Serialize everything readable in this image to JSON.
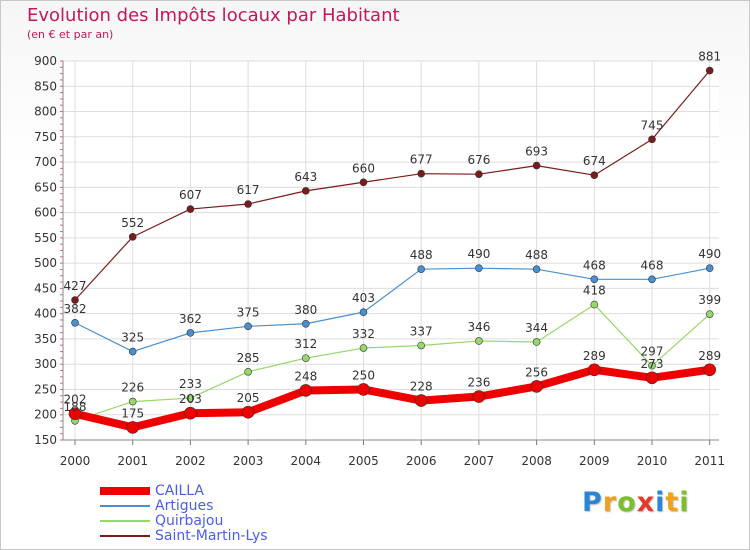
{
  "title": "Evolution des Impôts locaux par Habitant",
  "subtitle": "(en € et par an)",
  "logo_letters": [
    {
      "ch": "P",
      "color": "#2a86d4"
    },
    {
      "ch": "r",
      "color": "#f0a21a"
    },
    {
      "ch": "o",
      "color": "#7cbf2e"
    },
    {
      "ch": "x",
      "color": "#e23b2e"
    },
    {
      "ch": "i",
      "color": "#2a86d4"
    },
    {
      "ch": "t",
      "color": "#f0a21a"
    },
    {
      "ch": "i",
      "color": "#7cbf2e"
    }
  ],
  "chart_data": {
    "type": "line",
    "categories": [
      "2000",
      "2001",
      "2002",
      "2003",
      "2004",
      "2005",
      "2006",
      "2007",
      "2008",
      "2009",
      "2010",
      "2011"
    ],
    "ylim": [
      150,
      900
    ],
    "yticks": [
      150,
      200,
      250,
      300,
      350,
      400,
      450,
      500,
      550,
      600,
      650,
      700,
      750,
      800,
      850,
      900
    ],
    "grid": true,
    "legend_position": "bottom-left",
    "series": [
      {
        "name": "CAILLA",
        "color": "#ee0000",
        "values": [
          202,
          175,
          203,
          205,
          248,
          250,
          228,
          236,
          256,
          289,
          273,
          289
        ]
      },
      {
        "name": "Artigues",
        "color": "#4a90d0",
        "values": [
          382,
          325,
          362,
          375,
          380,
          403,
          488,
          490,
          488,
          468,
          468,
          490
        ]
      },
      {
        "name": "Quirbajou",
        "color": "#96d86a",
        "values": [
          188,
          226,
          233,
          285,
          312,
          332,
          337,
          346,
          344,
          418,
          297,
          399
        ]
      },
      {
        "name": "Saint-Martin-Lys",
        "color": "#7a1c1c",
        "values": [
          427,
          552,
          607,
          617,
          643,
          660,
          677,
          676,
          693,
          674,
          745,
          881
        ]
      }
    ]
  }
}
